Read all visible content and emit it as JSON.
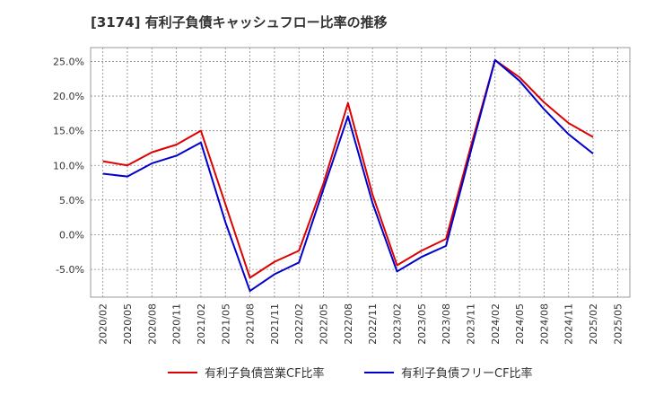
{
  "chart_data": {
    "type": "line",
    "title": "[3174]  有利子負債キャッシュフロー比率の推移",
    "xlabel": "",
    "ylabel": "",
    "x": [
      "2020/02",
      "2020/05",
      "2020/08",
      "2020/11",
      "2021/02",
      "2021/05",
      "2021/08",
      "2021/11",
      "2022/02",
      "2022/05",
      "2022/08",
      "2022/11",
      "2023/02",
      "2023/05",
      "2023/08",
      "2023/11",
      "2024/02",
      "2024/05",
      "2024/08",
      "2024/11",
      "2025/02",
      "2025/05"
    ],
    "y_ticks": [
      "25.0%",
      "20.0%",
      "15.0%",
      "10.0%",
      "5.0%",
      "0.0%",
      "-5.0%"
    ],
    "ylim": [
      -9.0,
      27.0
    ],
    "grid": true,
    "legend_position": "bottom",
    "series": [
      {
        "name": "有利子負債営業CF比率",
        "color": "#dd0000",
        "values": [
          10.6,
          10.0,
          11.9,
          13.0,
          15.0,
          4.4,
          -6.2,
          -3.9,
          -2.3,
          7.4,
          19.0,
          5.8,
          -4.4,
          -2.3,
          -0.6,
          12.6,
          25.2,
          22.7,
          19.1,
          16.1,
          14.1,
          null
        ]
      },
      {
        "name": "有利子負債フリーCF比率",
        "color": "#0000cc",
        "values": [
          8.8,
          8.4,
          10.3,
          11.4,
          13.3,
          1.8,
          -8.1,
          -5.7,
          -4.0,
          6.6,
          17.1,
          4.6,
          -5.3,
          -3.2,
          -1.6,
          11.9,
          25.2,
          22.2,
          18.1,
          14.5,
          11.7,
          null
        ]
      }
    ]
  }
}
